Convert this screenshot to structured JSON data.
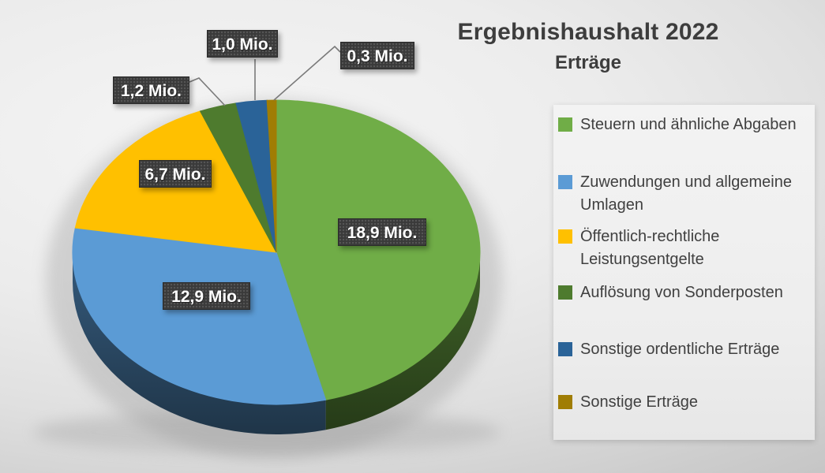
{
  "header": {
    "title": "Ergebnishaushalt 2022",
    "subtitle": "Erträge"
  },
  "chart_data": {
    "type": "pie",
    "style": "3d",
    "title": "Ergebnishaushalt 2022",
    "subtitle": "Erträge",
    "direction": "clockwise",
    "start_angle_deg": 0,
    "legend_position": "right",
    "unit": "Mio.",
    "slices": [
      {
        "name": "Steuern und ähnliche Abgaben",
        "value": 18.9,
        "label": "18,9 Mio.",
        "color": "#70AD47"
      },
      {
        "name": "Zuwendungen und allgemeine Umlagen",
        "value": 12.9,
        "label": "12,9 Mio.",
        "color": "#5B9BD5"
      },
      {
        "name": "Öffentlich-rechtliche Leistungsentgelte",
        "value": 6.7,
        "label": "6,7 Mio.",
        "color": "#FFC000"
      },
      {
        "name": "Auflösung von Sonderposten",
        "value": 1.2,
        "label": "1,2 Mio.",
        "color": "#4E7B2E"
      },
      {
        "name": "Sonstige ordentliche Erträge",
        "value": 1.0,
        "label": "1,0 Mio.",
        "color": "#2A6398"
      },
      {
        "name": "Sonstige Erträge",
        "value": 0.3,
        "label": "0,3 Mio.",
        "color": "#A07D04"
      }
    ]
  }
}
